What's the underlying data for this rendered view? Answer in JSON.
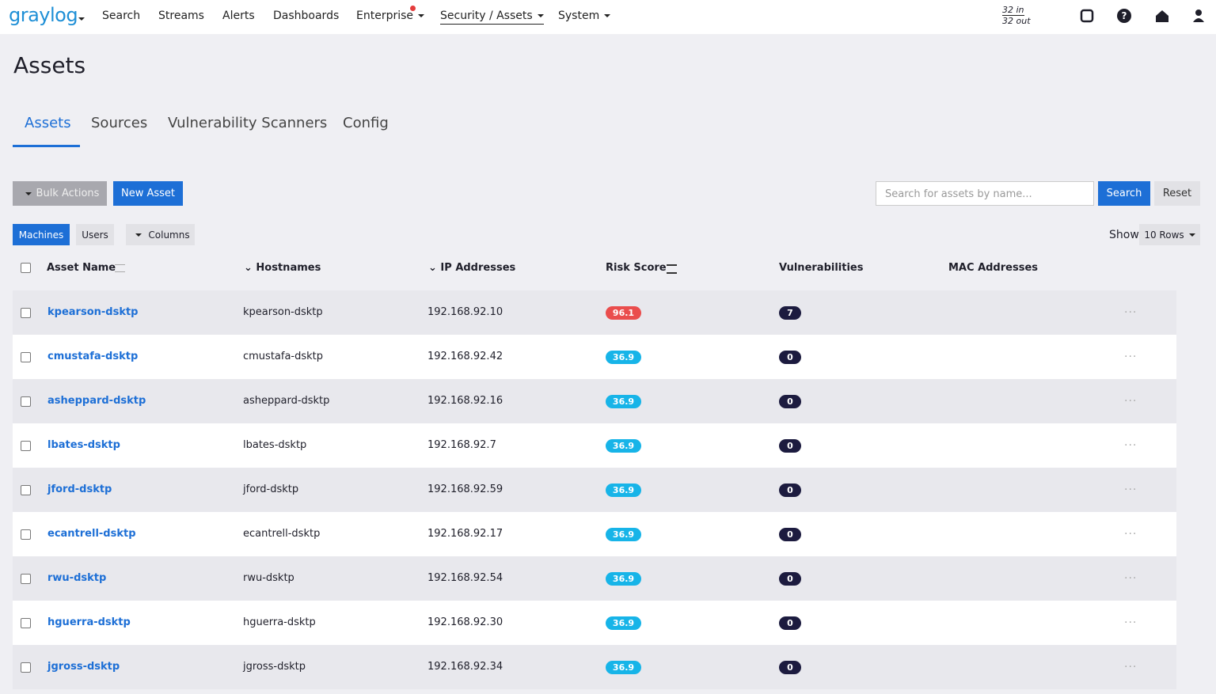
{
  "nav": {
    "logo": "graylog",
    "items": [
      "Search",
      "Streams",
      "Alerts",
      "Dashboards",
      "Enterprise",
      "Security / Assets",
      "System"
    ],
    "throughput_in": "32 in",
    "throughput_out": "32 out"
  },
  "page_title": "Assets",
  "tabs": [
    "Assets",
    "Sources",
    "Vulnerability Scanners",
    "Config"
  ],
  "toolbar": {
    "bulk_actions": "Bulk Actions",
    "new_asset": "New Asset",
    "search_placeholder": "Search for assets by name...",
    "search": "Search",
    "reset": "Reset"
  },
  "view": {
    "machines": "Machines",
    "users": "Users",
    "columns": "Columns",
    "show": "Show",
    "rows_per_page": "10 Rows"
  },
  "table": {
    "columns": [
      "Asset Name",
      "Hostnames",
      "IP Addresses",
      "Risk Score",
      "Vulnerabilities",
      "MAC Addresses"
    ],
    "rows": [
      [
        "kpearson-dsktp",
        "kpearson-dsktp",
        "192.168.92.10",
        96.1,
        7
      ],
      [
        "cmustafa-dsktp",
        "cmustafa-dsktp",
        "192.168.92.42",
        36.9,
        0
      ],
      [
        "asheppard-dsktp",
        "asheppard-dsktp",
        "192.168.92.16",
        36.9,
        0
      ],
      [
        "lbates-dsktp",
        "lbates-dsktp",
        "192.168.92.7",
        36.9,
        0
      ],
      [
        "jford-dsktp",
        "jford-dsktp",
        "192.168.92.59",
        36.9,
        0
      ],
      [
        "ecantrell-dsktp",
        "ecantrell-dsktp",
        "192.168.92.17",
        36.9,
        0
      ],
      [
        "rwu-dsktp",
        "rwu-dsktp",
        "192.168.92.54",
        36.9,
        0
      ],
      [
        "hguerra-dsktp",
        "hguerra-dsktp",
        "192.168.92.30",
        36.9,
        0
      ],
      [
        "jgross-dsktp",
        "jgross-dsktp",
        "192.168.92.34",
        36.9,
        0
      ]
    ]
  }
}
